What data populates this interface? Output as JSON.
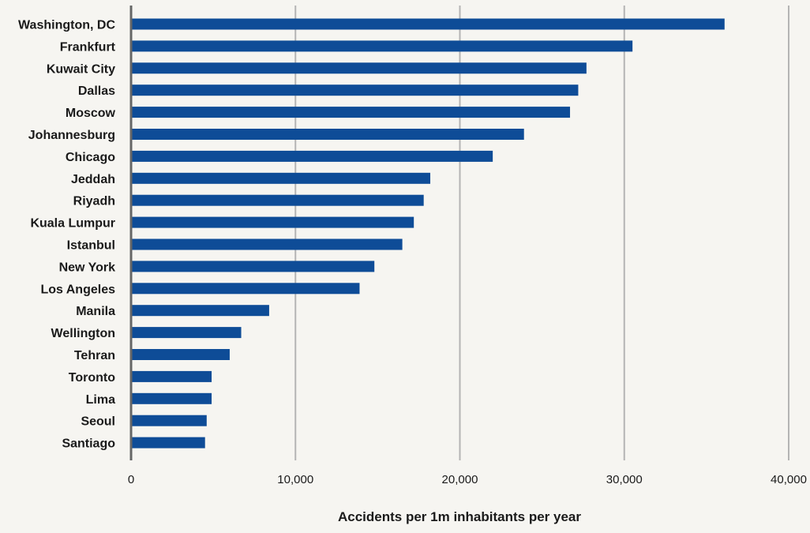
{
  "chart_data": {
    "type": "bar",
    "orientation": "horizontal",
    "categories": [
      "Washington, DC",
      "Frankfurt",
      "Kuwait City",
      "Dallas",
      "Moscow",
      "Johannesburg",
      "Chicago",
      "Jeddah",
      "Riyadh",
      "Kuala Lumpur",
      "Istanbul",
      "New York",
      "Los Angeles",
      "Manila",
      "Wellington",
      "Tehran",
      "Toronto",
      "Lima",
      "Seoul",
      "Santiago"
    ],
    "values": [
      36100,
      30500,
      27700,
      27200,
      26700,
      23900,
      22000,
      18200,
      17800,
      17200,
      16500,
      14800,
      13900,
      8400,
      6700,
      6000,
      4900,
      4900,
      4600,
      4500
    ],
    "title": "",
    "xlabel": "Accidents per 1m inhabitants per year",
    "ylabel": "",
    "xlim": [
      0,
      40000
    ],
    "x_ticks": [
      0,
      10000,
      20000,
      30000,
      40000
    ],
    "x_tick_labels": [
      "0",
      "10,000",
      "20,000",
      "30,000",
      "40,000"
    ],
    "grid": "vertical",
    "legend": "none"
  },
  "colors": {
    "bar": "#0e4c97",
    "grid": "#b4b4b4",
    "axis": "#666666",
    "text": "#1a1a1a",
    "background": "#f6f5f1"
  }
}
